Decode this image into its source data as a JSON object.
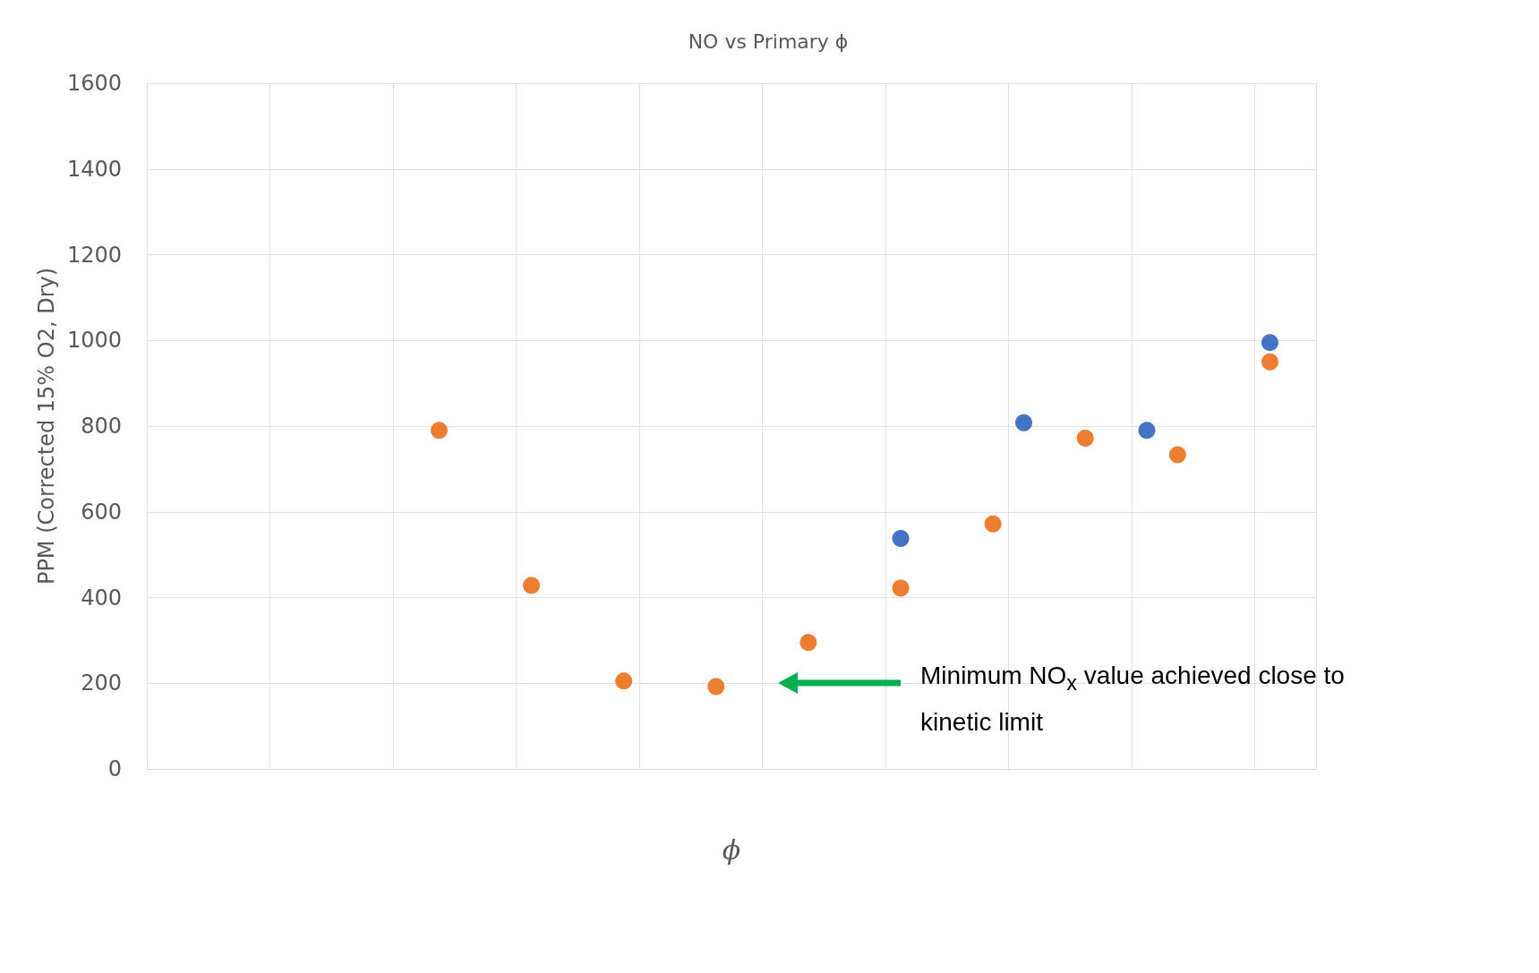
{
  "chart_data": {
    "type": "scatter",
    "title": "NO vs Primary ϕ",
    "xlabel": "ϕ",
    "ylabel": "PPM (Corrected 15% O2, Dry)",
    "categories": [
      null,
      null,
      null,
      null,
      null,
      null,
      null,
      null,
      null,
      null,
      null,
      null,
      null,
      null,
      null,
      null,
      null,
      null,
      null,
      null,
      null,
      null,
      null,
      null,
      null,
      null,
      null,
      null,
      null,
      null,
      null,
      null,
      null,
      null,
      null,
      null,
      null,
      null
    ],
    "series": [
      {
        "color": "#ed7d31",
        "values": [
          null,
          null,
          null,
          null,
          null,
          null,
          null,
          null,
          null,
          790,
          null,
          null,
          428,
          null,
          null,
          205,
          null,
          null,
          192,
          null,
          null,
          295,
          null,
          null,
          422,
          null,
          null,
          572,
          null,
          null,
          772,
          null,
          null,
          733,
          null,
          null,
          950,
          null
        ]
      },
      {
        "color": "#4472c4",
        "values": [
          null,
          null,
          null,
          null,
          null,
          null,
          null,
          null,
          null,
          null,
          null,
          null,
          null,
          null,
          null,
          null,
          null,
          null,
          null,
          null,
          null,
          null,
          null,
          null,
          538,
          null,
          null,
          null,
          808,
          null,
          null,
          null,
          790,
          null,
          null,
          null,
          995,
          null
        ]
      }
    ],
    "ylim": [
      0,
      1600
    ],
    "yticks": [
      0,
      200,
      400,
      600,
      800,
      1000,
      1200,
      1400,
      1600
    ],
    "grid": true,
    "marker": "circle",
    "annotations": [
      "Minimum NO$_{x}$ value achieved close to kinetic limit"
    ]
  }
}
